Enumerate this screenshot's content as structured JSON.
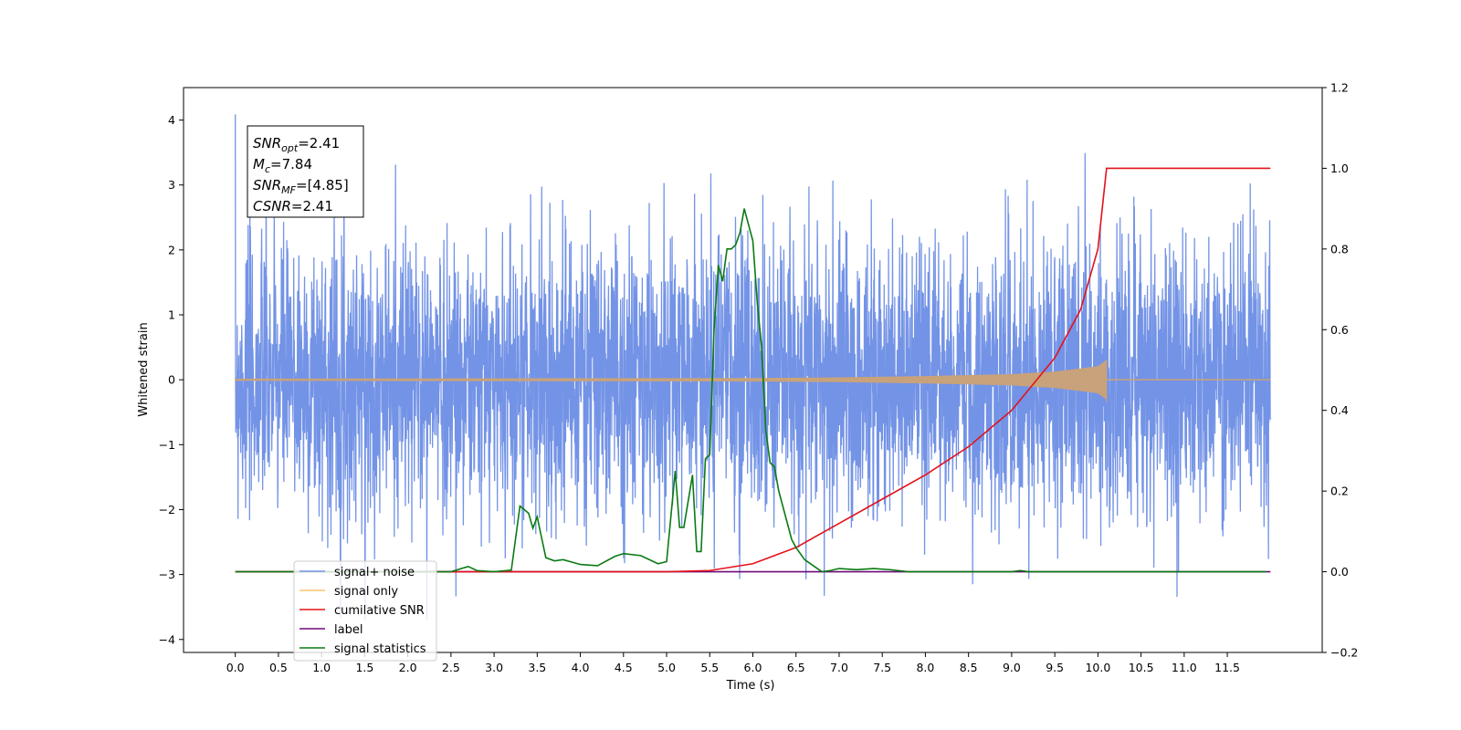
{
  "chart_data": {
    "type": "line",
    "title": "",
    "xlabel": "Time (s)",
    "ylabel": "Whitened strain",
    "xlim": [
      -0.6,
      12.6
    ],
    "ylim": [
      -4.2,
      4.5
    ],
    "y2lim": [
      -0.2,
      1.2
    ],
    "x_ticks": [
      0.0,
      0.5,
      1.0,
      1.5,
      2.0,
      2.5,
      3.0,
      3.5,
      4.0,
      4.5,
      5.0,
      5.5,
      6.0,
      6.5,
      7.0,
      7.5,
      8.0,
      8.5,
      9.0,
      9.5,
      10.0,
      10.5,
      11.0,
      11.5
    ],
    "x_tick_labels": [
      "0.0",
      "0.5",
      "1.0",
      "1.5",
      "2.0",
      "2.5",
      "3.0",
      "3.5",
      "4.0",
      "4.5",
      "5.0",
      "5.5",
      "6.0",
      "6.5",
      "7.0",
      "7.5",
      "8.0",
      "8.5",
      "9.0",
      "9.5",
      "10.0",
      "10.5",
      "11.0",
      "11.5"
    ],
    "y_ticks": [
      -4,
      -3,
      -2,
      -1,
      0,
      1,
      2,
      3,
      4
    ],
    "y_tick_labels": [
      "−4",
      "−3",
      "−2",
      "−1",
      "0",
      "1",
      "2",
      "3",
      "4"
    ],
    "y2_ticks": [
      -0.2,
      0.0,
      0.2,
      0.4,
      0.6,
      0.8,
      1.0,
      1.2
    ],
    "y2_tick_labels": [
      "−0.2",
      "0.0",
      "0.2",
      "0.4",
      "0.6",
      "0.8",
      "1.0",
      "1.2"
    ],
    "legend_placement": "lower-left",
    "legend": [
      {
        "label": "signal+ noise",
        "color": "#7393e6"
      },
      {
        "label": "signal only",
        "color": "#f7c66b"
      },
      {
        "label": "cumilative SNR",
        "color": "#e3121b"
      },
      {
        "label": "label",
        "color": "#6e0a78"
      },
      {
        "label": "signal statistics",
        "color": "#0a7a14"
      }
    ],
    "legend_hidden_label": "signal only",
    "annotation": {
      "lines": [
        {
          "base": "SNR",
          "sub": "opt",
          "value": "=2.41"
        },
        {
          "base": "M",
          "sub": "c",
          "value": "=7.84"
        },
        {
          "base": "SNR",
          "sub": "MF",
          "value": "=[4.85]"
        },
        {
          "base": "CSNR",
          "sub": "",
          "value": "=2.41"
        }
      ]
    },
    "series": [
      {
        "name": "signal+ noise",
        "axis": "left",
        "color": "#7393e6",
        "description_range": [
          -3.7,
          4.1
        ],
        "x_range": [
          0.0,
          12.0
        ]
      },
      {
        "name": "signal only",
        "axis": "left",
        "color": "#c8a27a",
        "chirp_end": 10.1,
        "envelope": {
          "x": [
            0.0,
            6.0,
            7.0,
            8.0,
            9.0,
            9.5,
            10.0,
            10.1
          ],
          "y": [
            0.01,
            0.02,
            0.03,
            0.05,
            0.08,
            0.12,
            0.2,
            0.3
          ]
        }
      },
      {
        "name": "cumilative SNR",
        "axis": "right",
        "color": "#e3121b",
        "x": [
          0.0,
          4.0,
          5.0,
          5.5,
          6.0,
          6.5,
          7.0,
          7.5,
          8.0,
          8.5,
          9.0,
          9.5,
          9.8,
          10.0,
          10.05,
          10.1,
          10.5,
          11.0,
          12.0
        ],
        "y": [
          0.0,
          0.0,
          0.0,
          0.003,
          0.02,
          0.06,
          0.12,
          0.18,
          0.24,
          0.31,
          0.4,
          0.53,
          0.65,
          0.8,
          0.9,
          1.0,
          1.0,
          1.0,
          1.0
        ]
      },
      {
        "name": "label",
        "axis": "right",
        "color": "#6e0a78",
        "x": [
          0.0,
          3.25,
          3.25,
          12.0
        ],
        "y": [
          0.0,
          0.0,
          0.0,
          0.0
        ]
      },
      {
        "name": "signal statistics",
        "axis": "right",
        "color": "#0a7a14",
        "x": [
          0.0,
          2.5,
          2.7,
          2.8,
          3.0,
          3.2,
          3.3,
          3.4,
          3.45,
          3.5,
          3.55,
          3.6,
          3.7,
          3.8,
          4.0,
          4.2,
          4.4,
          4.5,
          4.7,
          4.9,
          5.0,
          5.1,
          5.15,
          5.2,
          5.3,
          5.35,
          5.4,
          5.45,
          5.5,
          5.55,
          5.6,
          5.65,
          5.7,
          5.75,
          5.8,
          5.85,
          5.9,
          6.0,
          6.05,
          6.1,
          6.15,
          6.2,
          6.25,
          6.3,
          6.4,
          6.45,
          6.5,
          6.6,
          6.7,
          6.8,
          6.9,
          7.0,
          7.2,
          7.4,
          7.6,
          7.8,
          8.0,
          9.0,
          9.1,
          9.2,
          11.0,
          11.95
        ],
        "y": [
          0.0,
          0.0,
          0.013,
          0.003,
          0.0,
          0.004,
          0.163,
          0.145,
          0.108,
          0.136,
          0.085,
          0.035,
          0.027,
          0.03,
          0.018,
          0.015,
          0.038,
          0.045,
          0.04,
          0.02,
          0.025,
          0.25,
          0.11,
          0.11,
          0.24,
          0.05,
          0.05,
          0.28,
          0.29,
          0.6,
          0.76,
          0.72,
          0.8,
          0.8,
          0.81,
          0.84,
          0.9,
          0.82,
          0.67,
          0.56,
          0.35,
          0.27,
          0.26,
          0.2,
          0.12,
          0.08,
          0.06,
          0.03,
          0.015,
          0.0,
          0.003,
          0.008,
          0.005,
          0.008,
          0.005,
          0.0,
          0.0,
          0.0,
          0.003,
          0.0,
          0.0,
          0.0
        ]
      }
    ]
  }
}
